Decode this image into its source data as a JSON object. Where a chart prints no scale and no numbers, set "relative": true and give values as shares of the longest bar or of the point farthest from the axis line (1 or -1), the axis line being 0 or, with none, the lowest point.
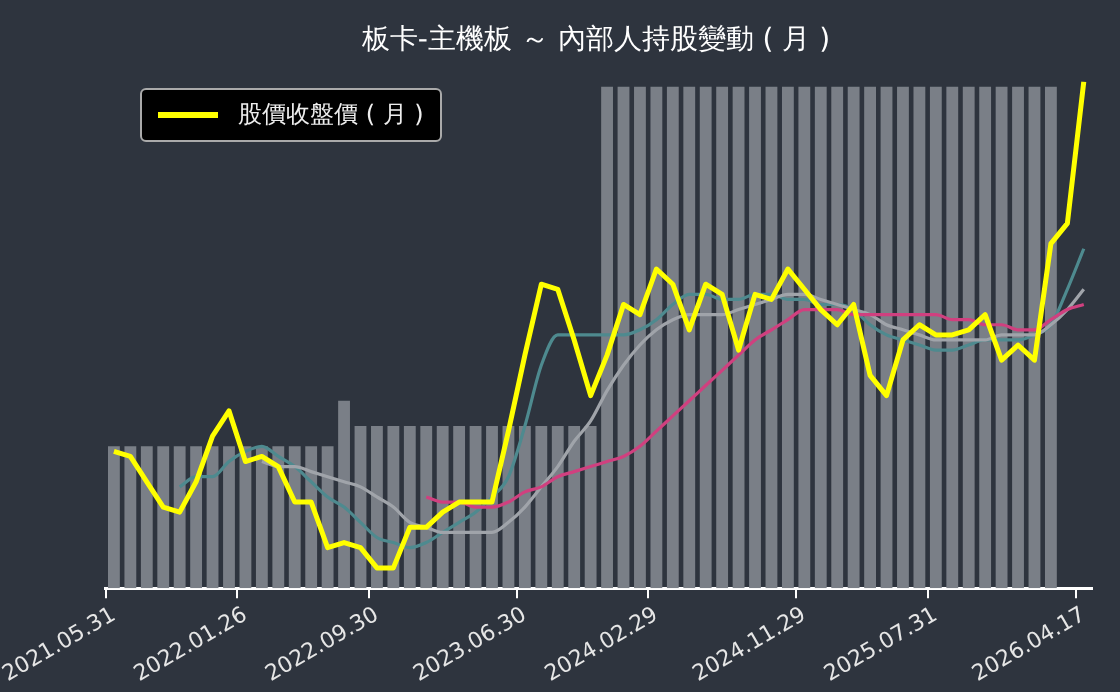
{
  "chart_data": {
    "type": "line",
    "title": "板卡-主機板 ～ 內部人持股變動 ( 月 )",
    "relative": true,
    "grid": false,
    "legend": "top left",
    "marker": "none",
    "line_style": "solid",
    "categories": [
      "2021.05.31",
      null,
      null,
      null,
      null,
      null,
      null,
      null,
      "2022.01.26",
      null,
      null,
      null,
      null,
      null,
      null,
      null,
      "2022.09.30",
      null,
      null,
      null,
      null,
      null,
      null,
      null,
      null,
      "2023.06.30",
      null,
      null,
      null,
      null,
      null,
      null,
      null,
      "2024.02.29",
      null,
      null,
      null,
      null,
      null,
      null,
      null,
      null,
      "2024.11.29",
      null,
      null,
      null,
      null,
      null,
      null,
      null,
      "2025.07.31",
      null,
      null,
      null,
      null,
      null,
      null,
      null,
      null,
      "2026.04.17"
    ],
    "series": [
      {
        "type": "bar",
        "color": "#7a7f87",
        "values": [
          0.28,
          0.28,
          0.28,
          0.28,
          0.28,
          0.28,
          0.28,
          0.28,
          0.28,
          0.28,
          0.28,
          0.28,
          0.28,
          0.28,
          0.37,
          0.32,
          0.32,
          0.32,
          0.32,
          0.32,
          0.32,
          0.32,
          0.32,
          0.32,
          0.32,
          0.32,
          0.32,
          0.32,
          0.32,
          0.32,
          0.99,
          0.99,
          0.99,
          0.99,
          0.99,
          0.99,
          0.99,
          0.99,
          0.99,
          0.99,
          0.99,
          0.99,
          0.99,
          0.99,
          0.99,
          0.99,
          0.99,
          0.99,
          0.99,
          0.99,
          0.99,
          0.99,
          0.99,
          0.99,
          0.99,
          0.99,
          0.99,
          0.99,
          null,
          null
        ]
      },
      {
        "color": "#4e8a8f",
        "values": [
          null,
          null,
          null,
          null,
          0.2,
          0.22,
          0.22,
          0.25,
          0.27,
          0.28,
          0.26,
          0.24,
          0.21,
          0.18,
          0.16,
          0.13,
          0.1,
          0.09,
          0.08,
          0.09,
          0.11,
          0.13,
          0.15,
          0.18,
          0.22,
          0.32,
          0.44,
          0.5,
          0.5,
          0.5,
          0.5,
          0.5,
          0.51,
          0.53,
          0.56,
          0.58,
          0.58,
          0.57,
          0.57,
          0.58,
          0.58,
          0.57,
          0.57,
          0.56,
          0.56,
          0.55,
          0.52,
          0.5,
          0.49,
          0.48,
          0.47,
          0.47,
          0.48,
          0.49,
          0.49,
          0.49,
          0.5,
          0.52,
          0.59,
          0.67
        ]
      },
      {
        "color": "#a0a4aa",
        "values": [
          null,
          null,
          null,
          null,
          null,
          null,
          null,
          null,
          null,
          0.25,
          0.24,
          0.24,
          0.23,
          0.22,
          0.21,
          0.2,
          0.18,
          0.16,
          0.13,
          0.12,
          0.11,
          0.11,
          0.11,
          0.11,
          0.13,
          0.16,
          0.2,
          0.24,
          0.29,
          0.33,
          0.39,
          0.44,
          0.48,
          0.51,
          0.53,
          0.54,
          0.54,
          0.54,
          0.55,
          0.56,
          0.57,
          0.58,
          0.58,
          0.57,
          0.56,
          0.55,
          0.54,
          0.52,
          0.51,
          0.5,
          0.49,
          0.49,
          0.49,
          0.49,
          0.5,
          0.5,
          0.5,
          0.52,
          0.55,
          0.59
        ]
      },
      {
        "color": "#d0407f",
        "values": [
          null,
          null,
          null,
          null,
          null,
          null,
          null,
          null,
          null,
          null,
          null,
          null,
          null,
          null,
          null,
          null,
          null,
          null,
          null,
          0.18,
          0.17,
          0.17,
          0.16,
          0.16,
          0.17,
          0.19,
          0.2,
          0.22,
          0.23,
          0.24,
          0.25,
          0.26,
          0.28,
          0.31,
          0.34,
          0.37,
          0.4,
          0.43,
          0.46,
          0.49,
          0.51,
          0.53,
          0.55,
          0.55,
          0.55,
          0.54,
          0.54,
          0.54,
          0.54,
          0.54,
          0.54,
          0.53,
          0.53,
          0.52,
          0.52,
          0.51,
          0.51,
          0.53,
          0.55,
          0.56
        ]
      },
      {
        "name": "股價收盤價 ( 月 )",
        "color": "#ffff00",
        "values": [
          0.27,
          0.26,
          0.21,
          0.16,
          0.15,
          0.21,
          0.3,
          0.35,
          0.25,
          0.26,
          0.24,
          0.17,
          0.17,
          0.08,
          0.09,
          0.08,
          0.04,
          0.04,
          0.12,
          0.12,
          0.15,
          0.17,
          0.17,
          0.17,
          0.31,
          0.46,
          0.6,
          0.59,
          0.49,
          0.38,
          0.46,
          0.56,
          0.54,
          0.63,
          0.6,
          0.51,
          0.6,
          0.58,
          0.47,
          0.58,
          0.57,
          0.63,
          0.59,
          0.55,
          0.52,
          0.56,
          0.42,
          0.38,
          0.49,
          0.52,
          0.5,
          0.5,
          0.51,
          0.54,
          0.45,
          0.48,
          0.45,
          0.68,
          0.72,
          1
        ]
      }
    ]
  }
}
